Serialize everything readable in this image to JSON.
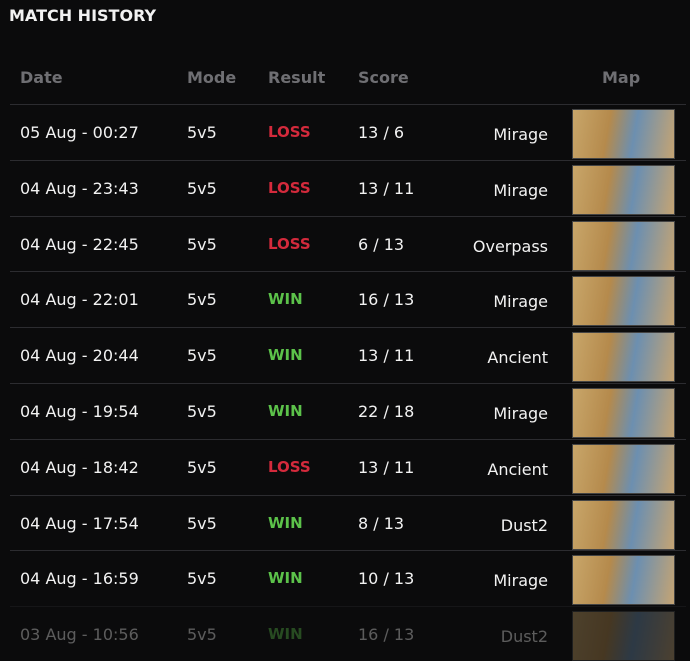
{
  "header": {
    "title": "MATCH HISTORY"
  },
  "table": {
    "columns": [
      "Date",
      "Mode",
      "Result",
      "Score",
      "Map"
    ],
    "rows": [
      {
        "date": "05 Aug - 00:27",
        "mode": "5v5",
        "result": "LOSS",
        "result_color": "#d42a3c",
        "score": "13 / 6",
        "map": "Mirage"
      },
      {
        "date": "04 Aug - 23:43",
        "mode": "5v5",
        "result": "LOSS",
        "result_color": "#d42a3c",
        "score": "13 / 11",
        "map": "Mirage"
      },
      {
        "date": "04 Aug - 22:45",
        "mode": "5v5",
        "result": "LOSS",
        "result_color": "#d42a3c",
        "score": "6 / 13",
        "map": "Overpass"
      },
      {
        "date": "04 Aug - 22:01",
        "mode": "5v5",
        "result": "WIN",
        "result_color": "#5cc24a",
        "score": "16 / 13",
        "map": "Mirage"
      },
      {
        "date": "04 Aug - 20:44",
        "mode": "5v5",
        "result": "WIN",
        "result_color": "#5cc24a",
        "score": "13 / 11",
        "map": "Ancient"
      },
      {
        "date": "04 Aug - 19:54",
        "mode": "5v5",
        "result": "WIN",
        "result_color": "#5cc24a",
        "score": "22 / 18",
        "map": "Mirage"
      },
      {
        "date": "04 Aug - 18:42",
        "mode": "5v5",
        "result": "LOSS",
        "result_color": "#d42a3c",
        "score": "13 / 11",
        "map": "Ancient"
      },
      {
        "date": "04 Aug - 17:54",
        "mode": "5v5",
        "result": "WIN",
        "result_color": "#5cc24a",
        "score": "8 / 13",
        "map": "Dust2"
      },
      {
        "date": "04 Aug - 16:59",
        "mode": "5v5",
        "result": "WIN",
        "result_color": "#5cc24a",
        "score": "10 / 13",
        "map": "Mirage"
      },
      {
        "date": "03 Aug - 10:56",
        "mode": "5v5",
        "result": "WIN",
        "result_color": "#5cc24a",
        "score": "16 / 13",
        "map": "Dust2"
      }
    ]
  }
}
